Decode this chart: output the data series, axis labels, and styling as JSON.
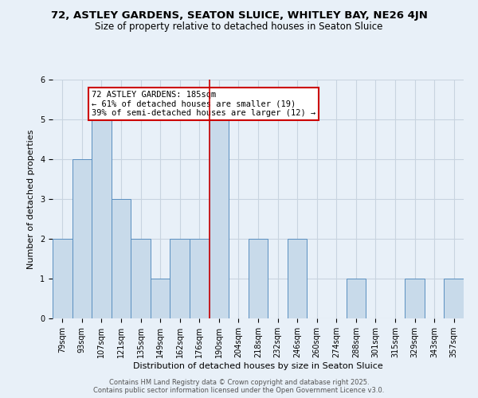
{
  "title": "72, ASTLEY GARDENS, SEATON SLUICE, WHITLEY BAY, NE26 4JN",
  "subtitle": "Size of property relative to detached houses in Seaton Sluice",
  "xlabel": "Distribution of detached houses by size in Seaton Sluice",
  "ylabel": "Number of detached properties",
  "bar_labels": [
    "79sqm",
    "93sqm",
    "107sqm",
    "121sqm",
    "135sqm",
    "149sqm",
    "162sqm",
    "176sqm",
    "190sqm",
    "204sqm",
    "218sqm",
    "232sqm",
    "246sqm",
    "260sqm",
    "274sqm",
    "288sqm",
    "301sqm",
    "315sqm",
    "329sqm",
    "343sqm",
    "357sqm"
  ],
  "bar_heights": [
    2,
    4,
    5,
    3,
    2,
    1,
    2,
    2,
    5,
    0,
    2,
    0,
    2,
    0,
    0,
    1,
    0,
    0,
    1,
    0,
    1
  ],
  "bar_color": "#c8daea",
  "bar_edge_color": "#5a8fc0",
  "vline_bin_index": 8,
  "vline_color": "#cc0000",
  "annotation_text": "72 ASTLEY GARDENS: 185sqm\n← 61% of detached houses are smaller (19)\n39% of semi-detached houses are larger (12) →",
  "annotation_box_color": "#ffffff",
  "annotation_box_edge_color": "#cc0000",
  "ylim": [
    0,
    6
  ],
  "yticks": [
    0,
    1,
    2,
    3,
    4,
    5,
    6
  ],
  "grid_color": "#c8d4e0",
  "bg_color": "#e8f0f8",
  "footer_line1": "Contains HM Land Registry data © Crown copyright and database right 2025.",
  "footer_line2": "Contains public sector information licensed under the Open Government Licence v3.0.",
  "title_fontsize": 9.5,
  "subtitle_fontsize": 8.5,
  "label_fontsize": 8,
  "tick_fontsize": 7,
  "annotation_fontsize": 7.5,
  "footer_fontsize": 6
}
